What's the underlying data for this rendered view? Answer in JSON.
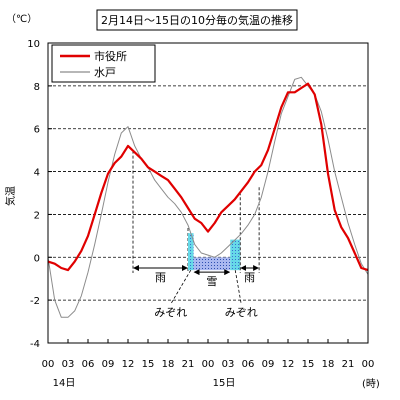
{
  "chart_data": {
    "type": "line",
    "title": "2月14日～15日の10分毎の気温の推移",
    "ylabel": "気温",
    "yunit": "（℃）",
    "xunit": "(時)",
    "ylim": [
      -4,
      10
    ],
    "yticks": [
      10,
      8,
      6,
      4,
      2,
      0,
      -2,
      -4
    ],
    "xlim": [
      "14日 00:00",
      "16日 00:00"
    ],
    "xticks": [
      "00",
      "03",
      "06",
      "09",
      "12",
      "15",
      "18",
      "21",
      "00",
      "03",
      "06",
      "09",
      "12",
      "15",
      "18",
      "21",
      "00"
    ],
    "day_labels": [
      "14日",
      "15日"
    ],
    "grid": "dashed horizontal",
    "legend": "top-left",
    "x": [
      "14日 00:00",
      "14日 01:00",
      "14日 02:00",
      "14日 03:00",
      "14日 04:00",
      "14日 05:00",
      "14日 06:00",
      "14日 07:00",
      "14日 08:00",
      "14日 09:00",
      "14日 10:00",
      "14日 11:00",
      "14日 12:00",
      "14日 13:00",
      "14日 14:00",
      "14日 15:00",
      "14日 16:00",
      "14日 17:00",
      "14日 18:00",
      "14日 19:00",
      "14日 20:00",
      "14日 21:00",
      "14日 22:00",
      "14日 23:00",
      "15日 00:00",
      "15日 01:00",
      "15日 02:00",
      "15日 03:00",
      "15日 04:00",
      "15日 05:00",
      "15日 06:00",
      "15日 07:00",
      "15日 08:00",
      "15日 09:00",
      "15日 10:00",
      "15日 11:00",
      "15日 12:00",
      "15日 13:00",
      "15日 14:00",
      "15日 15:00",
      "15日 16:00",
      "15日 17:00",
      "15日 18:00",
      "15日 19:00",
      "15日 20:00",
      "15日 21:00",
      "15日 22:00",
      "15日 23:00",
      "16日 00:00"
    ],
    "series": [
      {
        "name": "市役所",
        "color": "#e00000",
        "values": [
          -0.2,
          -0.3,
          -0.5,
          -0.6,
          -0.2,
          0.3,
          1.0,
          2.0,
          3.0,
          3.9,
          4.4,
          4.7,
          5.2,
          4.9,
          4.6,
          4.2,
          4.0,
          3.8,
          3.6,
          3.2,
          2.8,
          2.3,
          1.8,
          1.6,
          1.2,
          1.6,
          2.1,
          2.4,
          2.7,
          3.1,
          3.5,
          4.0,
          4.3,
          5.0,
          6.0,
          7.0,
          7.7,
          7.7,
          7.9,
          8.1,
          7.6,
          6.2,
          3.9,
          2.2,
          1.4,
          0.9,
          0.2,
          -0.5,
          -0.6
        ]
      },
      {
        "name": "水戸",
        "color": "#8c8c8c",
        "values": [
          0.0,
          -2.0,
          -2.8,
          -2.8,
          -2.5,
          -1.8,
          -0.7,
          0.6,
          2.0,
          3.5,
          4.8,
          5.8,
          6.1,
          5.2,
          4.6,
          4.2,
          3.6,
          3.2,
          2.8,
          2.5,
          2.1,
          1.5,
          0.6,
          0.2,
          0.1,
          0.0,
          0.2,
          0.5,
          0.8,
          1.1,
          1.5,
          2.0,
          2.8,
          4.0,
          5.4,
          6.7,
          7.5,
          8.3,
          8.4,
          8.0,
          7.6,
          6.8,
          5.5,
          4.0,
          2.8,
          1.6,
          0.6,
          -0.3,
          -0.8
        ]
      }
    ],
    "periods": [
      {
        "label": "雨",
        "kind": "rain",
        "start": "14日 12:45",
        "end": "14日 21:00"
      },
      {
        "label": "みぞれ",
        "kind": "sleet",
        "start": "14日 21:00",
        "end": "14日 21:50"
      },
      {
        "label": "雪",
        "kind": "snow",
        "start": "14日 21:50",
        "end": "15日 03:20"
      },
      {
        "label": "みぞれ",
        "kind": "sleet",
        "start": "15日 03:20",
        "end": "15日 04:50"
      },
      {
        "label": "雨",
        "kind": "rain",
        "start": "15日 04:50",
        "end": "15日 07:40"
      }
    ],
    "colors": {
      "sleet": "#66d9e8",
      "snow": "#aab8f0",
      "grid": "#000000"
    }
  }
}
